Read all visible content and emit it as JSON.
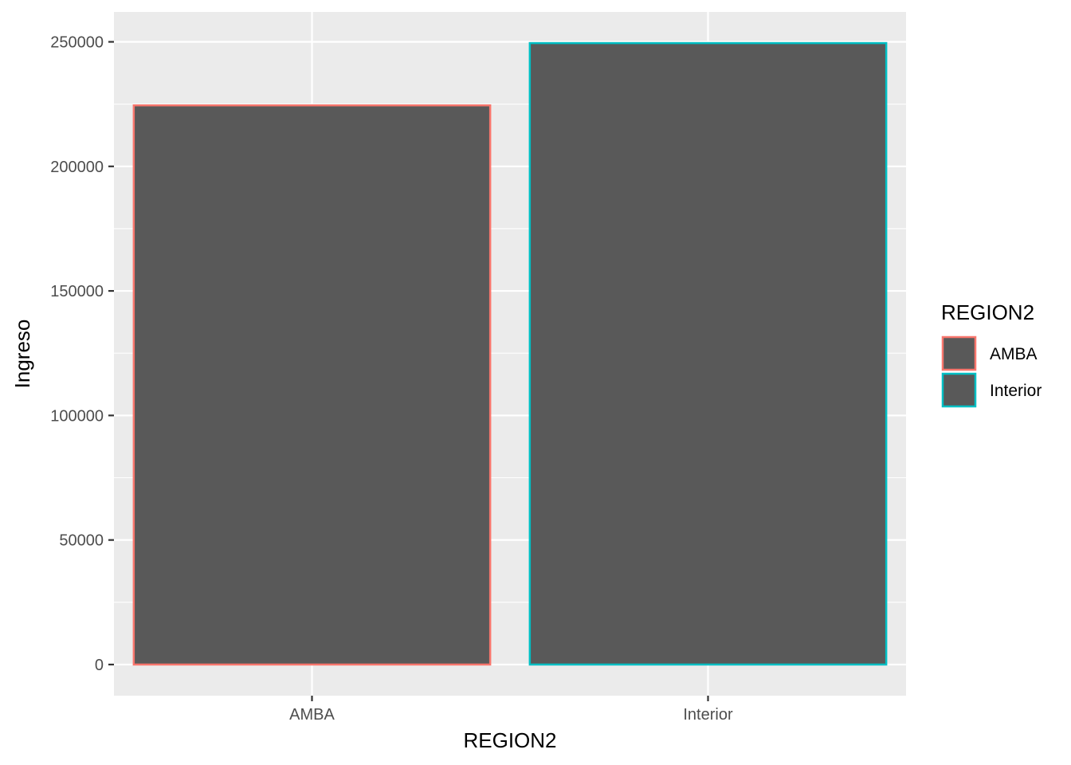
{
  "chart_data": {
    "type": "bar",
    "categories": [
      "AMBA",
      "Interior"
    ],
    "values": [
      224500,
      249500
    ],
    "title": "",
    "xlabel": "REGION2",
    "ylabel": "Ingreso",
    "ylim": [
      -12500,
      262000
    ],
    "yticks": [
      0,
      50000,
      100000,
      150000,
      200000,
      250000
    ],
    "ytick_labels": [
      "0",
      "50000",
      "100000",
      "150000",
      "200000",
      "250000"
    ],
    "bar_fill": "#595959",
    "outline_colors": [
      "#f8766d",
      "#00bfc4"
    ],
    "panel_background": "#ebebeb",
    "grid_color": "#ffffff",
    "grid": true,
    "legend": {
      "title": "REGION2",
      "placement": "right",
      "entries": [
        "AMBA",
        "Interior"
      ]
    }
  }
}
